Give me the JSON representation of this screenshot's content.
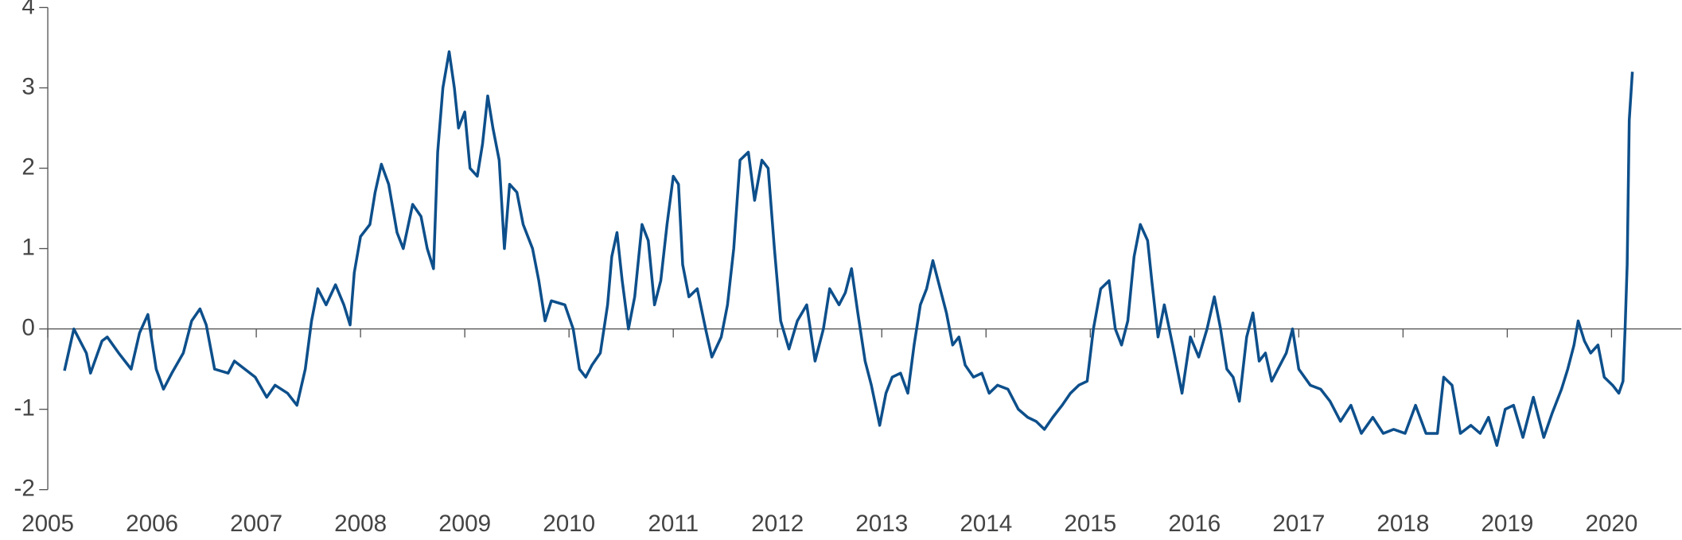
{
  "chart_data": {
    "type": "line",
    "x": [
      2005.16,
      2005.25,
      2005.27,
      2005.37,
      2005.41,
      2005.52,
      2005.57,
      2005.68,
      2005.8,
      2005.88,
      2005.96,
      2006.04,
      2006.11,
      2006.19,
      2006.3,
      2006.38,
      2006.46,
      2006.52,
      2006.6,
      2006.73,
      2006.79,
      2006.89,
      2006.99,
      2007.1,
      2007.18,
      2007.3,
      2007.39,
      2007.47,
      2007.53,
      2007.59,
      2007.67,
      2007.76,
      2007.84,
      2007.9,
      2007.94,
      2008.0,
      2008.09,
      2008.14,
      2008.2,
      2008.27,
      2008.35,
      2008.41,
      2008.5,
      2008.58,
      2008.64,
      2008.7,
      2008.74,
      2008.79,
      2008.85,
      2008.9,
      2008.94,
      2009.0,
      2009.05,
      2009.12,
      2009.17,
      2009.22,
      2009.27,
      2009.33,
      2009.38,
      2009.43,
      2009.5,
      2009.56,
      2009.65,
      2009.71,
      2009.77,
      2009.83,
      2009.96,
      2010.04,
      2010.1,
      2010.16,
      2010.22,
      2010.3,
      2010.37,
      2010.41,
      2010.46,
      2010.51,
      2010.57,
      2010.63,
      2010.7,
      2010.76,
      2010.82,
      2010.88,
      2010.94,
      2011.0,
      2011.05,
      2011.09,
      2011.15,
      2011.23,
      2011.31,
      2011.37,
      2011.46,
      2011.52,
      2011.58,
      2011.64,
      2011.72,
      2011.78,
      2011.85,
      2011.91,
      2011.97,
      2012.03,
      2012.11,
      2012.19,
      2012.28,
      2012.36,
      2012.44,
      2012.5,
      2012.59,
      2012.65,
      2012.71,
      2012.77,
      2012.84,
      2012.9,
      2012.98,
      2013.04,
      2013.1,
      2013.18,
      2013.25,
      2013.31,
      2013.37,
      2013.43,
      2013.49,
      2013.55,
      2013.62,
      2013.68,
      2013.74,
      2013.8,
      2013.88,
      2013.96,
      2014.03,
      2014.11,
      2014.21,
      2014.31,
      2014.4,
      2014.48,
      2014.56,
      2014.64,
      2014.73,
      2014.81,
      2014.89,
      2014.97,
      2015.03,
      2015.1,
      2015.18,
      2015.24,
      2015.3,
      2015.36,
      2015.42,
      2015.48,
      2015.55,
      2015.59,
      2015.65,
      2015.71,
      2015.79,
      2015.88,
      2015.96,
      2016.04,
      2016.12,
      2016.19,
      2016.25,
      2016.31,
      2016.37,
      2016.43,
      2016.5,
      2016.56,
      2016.62,
      2016.68,
      2016.74,
      2016.8,
      2016.88,
      2016.94,
      2017.0,
      2017.11,
      2017.21,
      2017.3,
      2017.4,
      2017.5,
      2017.6,
      2017.71,
      2017.81,
      2017.91,
      2018.02,
      2018.12,
      2018.22,
      2018.33,
      2018.39,
      2018.47,
      2018.55,
      2018.65,
      2018.74,
      2018.82,
      2018.9,
      2018.98,
      2019.06,
      2019.15,
      2019.25,
      2019.35,
      2019.43,
      2019.52,
      2019.58,
      2019.64,
      2019.68,
      2019.74,
      2019.8,
      2019.87,
      2019.93,
      2020.01,
      2020.07,
      2020.11,
      2020.13,
      2020.15,
      2020.17,
      2020.19,
      2020.2
    ],
    "series": [
      {
        "color": "#0d4f8b",
        "values": [
          -0.52,
          0.0,
          -0.05,
          -0.3,
          -0.55,
          -0.15,
          -0.1,
          -0.3,
          -0.5,
          -0.05,
          0.18,
          -0.5,
          -0.75,
          -0.55,
          -0.3,
          0.1,
          0.25,
          0.05,
          -0.5,
          -0.55,
          -0.4,
          -0.5,
          -0.6,
          -0.85,
          -0.7,
          -0.8,
          -0.95,
          -0.5,
          0.1,
          0.5,
          0.3,
          0.55,
          0.3,
          0.05,
          0.7,
          1.15,
          1.3,
          1.7,
          2.05,
          1.8,
          1.2,
          1.0,
          1.55,
          1.4,
          1.0,
          0.75,
          2.2,
          3.0,
          3.45,
          3.0,
          2.5,
          2.7,
          2.0,
          1.9,
          2.3,
          2.9,
          2.5,
          2.1,
          1.0,
          1.8,
          1.7,
          1.3,
          1.0,
          0.6,
          0.1,
          0.35,
          0.3,
          0.0,
          -0.5,
          -0.6,
          -0.45,
          -0.3,
          0.3,
          0.9,
          1.2,
          0.6,
          0.0,
          0.4,
          1.3,
          1.1,
          0.3,
          0.6,
          1.3,
          1.9,
          1.8,
          0.8,
          0.4,
          0.5,
          0.0,
          -0.35,
          -0.1,
          0.3,
          1.0,
          2.1,
          2.2,
          1.6,
          2.1,
          2.0,
          1.0,
          0.1,
          -0.25,
          0.1,
          0.3,
          -0.4,
          0.0,
          0.5,
          0.3,
          0.45,
          0.75,
          0.2,
          -0.4,
          -0.7,
          -1.2,
          -0.8,
          -0.6,
          -0.55,
          -0.8,
          -0.2,
          0.3,
          0.5,
          0.85,
          0.55,
          0.2,
          -0.2,
          -0.1,
          -0.45,
          -0.6,
          -0.55,
          -0.8,
          -0.7,
          -0.75,
          -1.0,
          -1.1,
          -1.15,
          -1.25,
          -1.1,
          -0.95,
          -0.8,
          -0.7,
          -0.65,
          0.0,
          0.5,
          0.6,
          0.0,
          -0.2,
          0.1,
          0.9,
          1.3,
          1.1,
          0.6,
          -0.1,
          0.3,
          -0.2,
          -0.8,
          -0.1,
          -0.35,
          0.0,
          0.4,
          0.0,
          -0.5,
          -0.6,
          -0.9,
          -0.1,
          0.2,
          -0.4,
          -0.3,
          -0.65,
          -0.5,
          -0.3,
          0.0,
          -0.5,
          -0.7,
          -0.75,
          -0.9,
          -1.15,
          -0.95,
          -1.3,
          -1.1,
          -1.3,
          -1.25,
          -1.3,
          -0.95,
          -1.3,
          -1.3,
          -0.6,
          -0.7,
          -1.3,
          -1.2,
          -1.3,
          -1.1,
          -1.45,
          -1.0,
          -0.95,
          -1.35,
          -0.85,
          -1.35,
          -1.05,
          -0.75,
          -0.5,
          -0.2,
          0.1,
          -0.15,
          -0.3,
          -0.2,
          -0.6,
          -0.7,
          -0.8,
          -0.65,
          0.0,
          0.8,
          2.6,
          3.0,
          3.2
        ]
      }
    ],
    "xlim": [
      2005,
      2020.67
    ],
    "xticks": [
      2005,
      2006,
      2007,
      2008,
      2009,
      2010,
      2011,
      2012,
      2013,
      2014,
      2015,
      2016,
      2017,
      2018,
      2019,
      2020
    ],
    "ylim": [
      -2,
      4
    ],
    "yticks": [
      -2,
      -1,
      0,
      1,
      2,
      3,
      4
    ]
  }
}
